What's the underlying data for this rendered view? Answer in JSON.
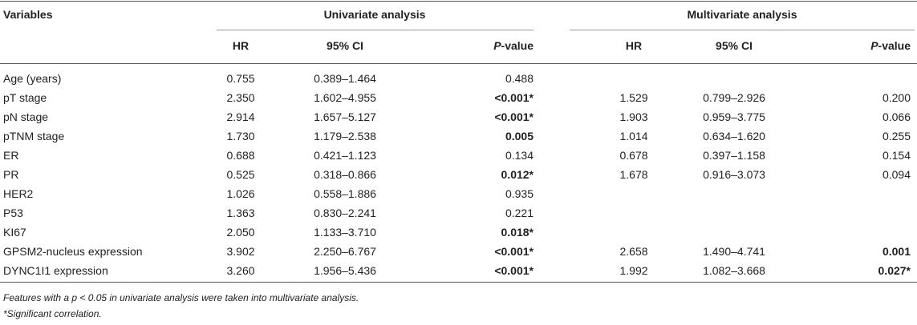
{
  "header": {
    "variables": "Variables",
    "groups": [
      "Univariate analysis",
      "Multivariate analysis"
    ],
    "columns": [
      "HR",
      "95% CI",
      "P-value",
      "HR",
      "95% CI",
      "P-value"
    ]
  },
  "rows": [
    [
      "Age (years)",
      "0.755",
      "0.389–1.464",
      "0.488",
      null,
      null,
      null
    ],
    [
      "pT stage",
      "2.350",
      "1.602–4.955",
      "<0.001*",
      "1.529",
      "0.799–2.926",
      "0.200"
    ],
    [
      "pN stage",
      "2.914",
      "1.657–5.127",
      "<0.001*",
      "1.903",
      "0.959–3.775",
      "0.066"
    ],
    [
      "pTNM stage",
      "1.730",
      "1.179–2.538",
      "0.005",
      "1.014",
      "0.634–1.620",
      "0.255"
    ],
    [
      "ER",
      "0.688",
      "0.421–1.123",
      "0.134",
      "0.678",
      "0.397–1.158",
      "0.154"
    ],
    [
      "PR",
      "0.525",
      "0.318–0.866",
      "0.012*",
      "1.678",
      "0.916–3.073",
      "0.094"
    ],
    [
      "HER2",
      "1.026",
      "0.558–1.886",
      "0.935",
      null,
      null,
      null
    ],
    [
      "P53",
      "1.363",
      "0.830–2.241",
      "0.221",
      null,
      null,
      null
    ],
    [
      "KI67",
      "2.050",
      "1.133–3.710",
      "0.018*",
      null,
      null,
      null
    ],
    [
      "GPSM2-nucleus expression",
      "3.902",
      "2.250–6.767",
      "<0.001*",
      "2.658",
      "1.490–4.741",
      "0.001"
    ],
    [
      "DYNC1I1 expression",
      "3.260",
      "1.956–5.436",
      "<0.001*",
      "1.992",
      "1.082–3.668",
      "0.027*"
    ]
  ],
  "footnotes": [
    "Features with a p < 0.05 in univariate analysis were taken into multivariate analysis.",
    "*Significant correlation."
  ]
}
